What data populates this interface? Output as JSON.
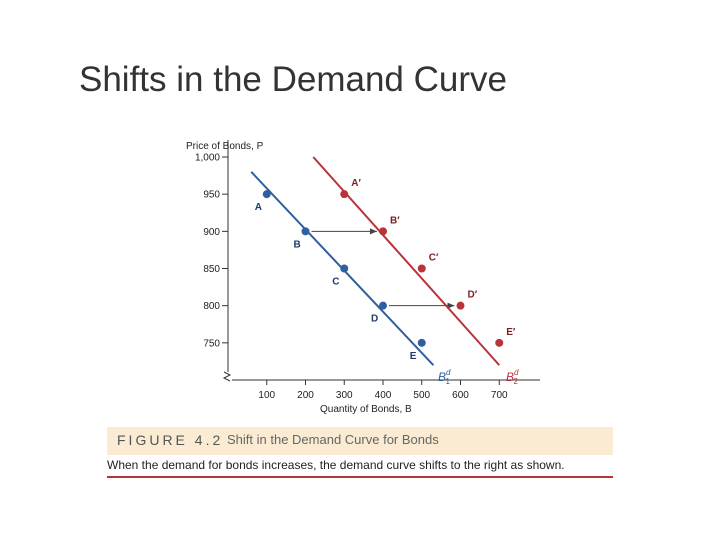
{
  "slide": {
    "title": "Shifts in the Demand Curve"
  },
  "figure": {
    "number": "FIGURE 4.2",
    "title": "Shift in the Demand Curve for Bonds",
    "caption": "When the demand for bonds increases, the demand curve shifts to the right as shown."
  },
  "colors": {
    "original_curve": "#2f5f9e",
    "shifted_curve": "#b8333a",
    "axis": "#333333",
    "caption_band": "#faebd2"
  },
  "chart_data": {
    "type": "line",
    "title": "",
    "xlabel": "Quantity of Bonds, B",
    "ylabel": "Price of Bonds, P",
    "xlim": [
      0,
      800
    ],
    "ylim": [
      700,
      1000
    ],
    "x_ticks": [
      100,
      200,
      300,
      400,
      500,
      600,
      700
    ],
    "y_ticks": [
      750,
      800,
      850,
      900,
      950,
      1000
    ],
    "y_tick_labels": [
      "750",
      "800",
      "850",
      "900",
      "950",
      "1,000"
    ],
    "grid": false,
    "axis_break": true,
    "series": [
      {
        "name": "B",
        "name_superscript": "d",
        "name_subscript": "1",
        "line": {
          "x_start": 60,
          "y_start": 980,
          "x_end": 530,
          "y_end": 720
        },
        "points": [
          {
            "label": "A",
            "x": 100,
            "y": 950
          },
          {
            "label": "B",
            "x": 200,
            "y": 900
          },
          {
            "label": "C",
            "x": 300,
            "y": 850
          },
          {
            "label": "D",
            "x": 400,
            "y": 800
          },
          {
            "label": "E",
            "x": 500,
            "y": 750
          }
        ]
      },
      {
        "name": "B",
        "name_superscript": "d",
        "name_subscript": "2",
        "line": {
          "x_start": 220,
          "y_start": 1000,
          "x_end": 700,
          "y_end": 720
        },
        "points": [
          {
            "label": "A′",
            "x": 300,
            "y": 950
          },
          {
            "label": "B′",
            "x": 400,
            "y": 900
          },
          {
            "label": "C′",
            "x": 500,
            "y": 850
          },
          {
            "label": "D′",
            "x": 600,
            "y": 800
          },
          {
            "label": "E′",
            "x": 700,
            "y": 750
          }
        ]
      }
    ],
    "annotations": [
      {
        "type": "arrow",
        "from": [
          200,
          900
        ],
        "to": [
          400,
          900
        ]
      },
      {
        "type": "arrow",
        "from": [
          400,
          800
        ],
        "to": [
          600,
          800
        ]
      }
    ]
  }
}
